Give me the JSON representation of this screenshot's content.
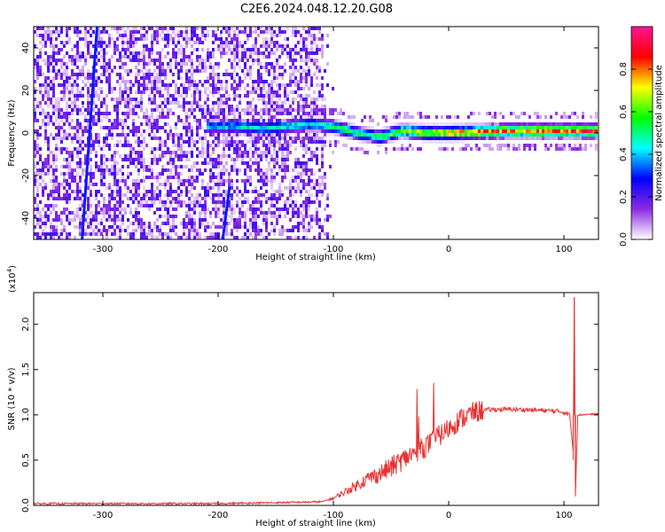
{
  "title": "C2E6.2024.048.12.20.G08",
  "chart_data": [
    {
      "type": "heatmap",
      "xlabel": "Height of straight line (km)",
      "ylabel": "Frequency (Hz)",
      "xlim": [
        -360,
        130
      ],
      "ylim": [
        -50,
        50
      ],
      "x_ticks": [
        -300,
        -200,
        -100,
        0,
        100
      ],
      "y_ticks": [
        -40,
        -20,
        0,
        20,
        40
      ],
      "colorbar": {
        "label": "Normalized spectral amplitude",
        "range": [
          0.0,
          1.0
        ],
        "ticks": [
          "0.0",
          "0.2",
          "0.4",
          "0.6",
          "0.8"
        ],
        "colors": [
          "#ffffff",
          "#8a2be2",
          "#0000ff",
          "#00ffff",
          "#00ff00",
          "#ffff00",
          "#ff0000",
          "#ff1493"
        ]
      },
      "ridge": [
        {
          "x": -210,
          "center": 3,
          "amp": 0.4
        },
        {
          "x": -180,
          "center": 3,
          "amp": 0.45
        },
        {
          "x": -160,
          "center": 2,
          "amp": 0.45
        },
        {
          "x": -120,
          "center": 4,
          "amp": 0.5
        },
        {
          "x": -100,
          "center": 3,
          "amp": 0.55
        },
        {
          "x": -80,
          "center": 0,
          "amp": 0.55
        },
        {
          "x": -60,
          "center": -2,
          "amp": 0.6
        },
        {
          "x": -40,
          "center": 1,
          "amp": 0.65
        },
        {
          "x": -20,
          "center": 0,
          "amp": 0.75
        },
        {
          "x": 0,
          "center": 0,
          "amp": 0.8
        },
        {
          "x": 50,
          "center": 1,
          "amp": 0.85
        },
        {
          "x": 100,
          "center": 1,
          "amp": 0.9
        },
        {
          "x": 130,
          "center": 1,
          "amp": 0.9
        }
      ]
    },
    {
      "type": "line",
      "xlabel": "Height of straight line (km)",
      "ylabel": "SNR (10 * v/v)",
      "y_multiplier": "(x10",
      "y_multiplier_exp": "4",
      "y_multiplier_close": ")",
      "xlim": [
        -360,
        130
      ],
      "ylim": [
        0,
        2.35
      ],
      "x_ticks": [
        -300,
        -200,
        -100,
        0,
        100
      ],
      "y_ticks": [
        "0.0",
        "0.5",
        "1.0",
        "1.5",
        "2.0"
      ],
      "color": "#e8312f",
      "series": [
        {
          "values": [
            [
              -360,
              0.02
            ],
            [
              -300,
              0.02
            ],
            [
              -200,
              0.02
            ],
            [
              -150,
              0.03
            ],
            [
              -110,
              0.04
            ],
            [
              -100,
              0.08
            ],
            [
              -90,
              0.15
            ],
            [
              -80,
              0.22
            ],
            [
              -70,
              0.3
            ],
            [
              -60,
              0.35
            ],
            [
              -50,
              0.42
            ],
            [
              -40,
              0.5
            ],
            [
              -30,
              0.58
            ],
            [
              -20,
              0.65
            ],
            [
              -10,
              0.75
            ],
            [
              0,
              0.85
            ],
            [
              10,
              0.95
            ],
            [
              20,
              1.02
            ],
            [
              30,
              1.05
            ],
            [
              40,
              1.06
            ],
            [
              60,
              1.06
            ],
            [
              80,
              1.05
            ],
            [
              95,
              1.04
            ],
            [
              100,
              1.03
            ],
            [
              105,
              1.0
            ],
            [
              108,
              0.6
            ],
            [
              109,
              2.3
            ],
            [
              110,
              0.1
            ],
            [
              112,
              1.0
            ],
            [
              130,
              1.01
            ]
          ]
        }
      ]
    }
  ]
}
